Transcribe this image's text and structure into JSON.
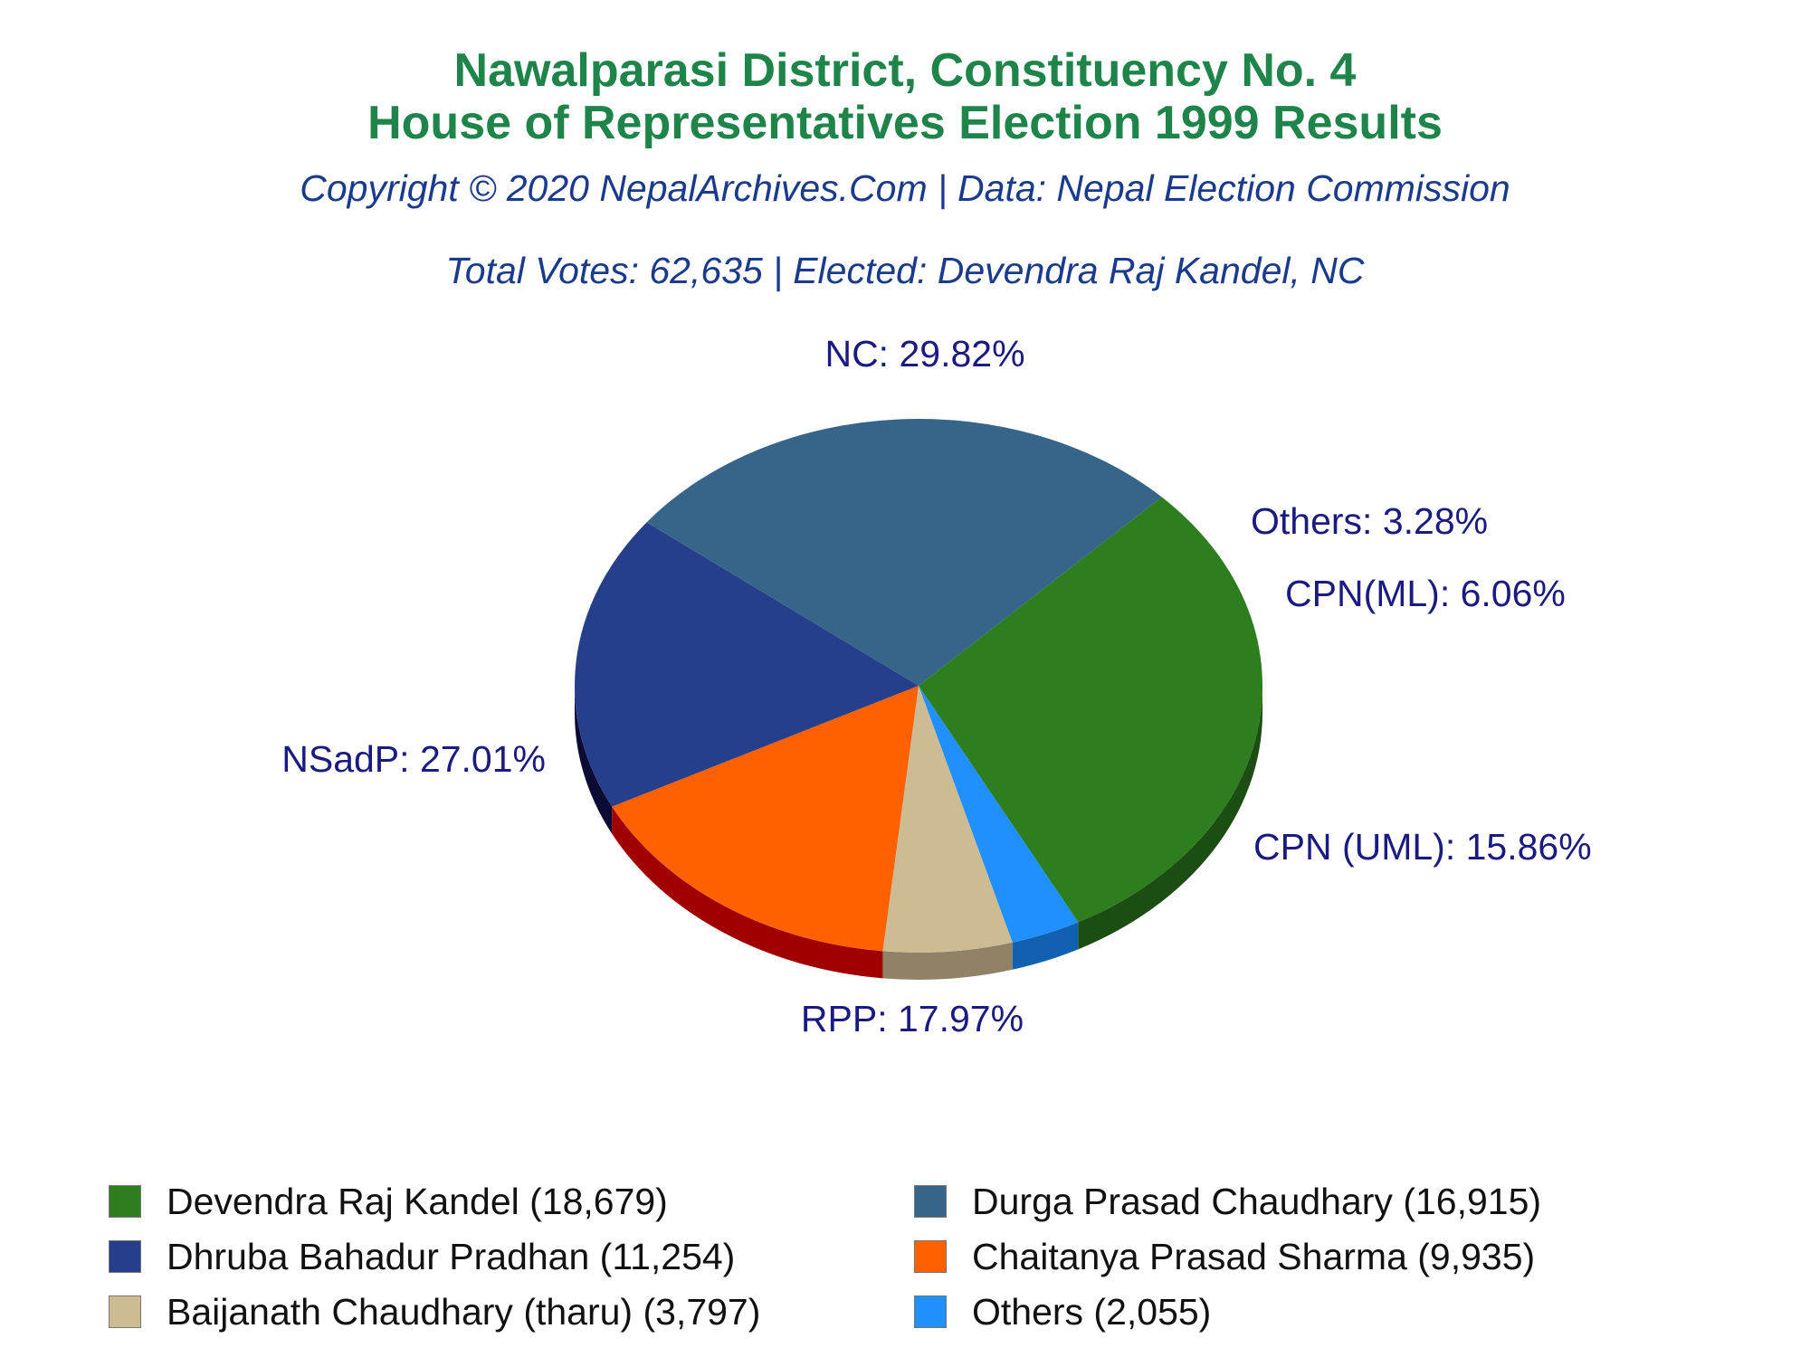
{
  "title_line1": "Nawalparasi District, Constituency No. 4",
  "title_line2": "House of Representatives Election 1999 Results",
  "subtitle_line1": "Copyright © 2020 NepalArchives.Com | Data: Nepal Election Commission",
  "subtitle_line2": "Total Votes: 62,635 | Elected: Devendra Raj Kandel, NC",
  "chart_data": {
    "type": "pie",
    "slices": [
      {
        "label": "NC: 29.82%",
        "value": 29.82,
        "color": "#2e7d1e",
        "side_color": "#1c4d12",
        "legend": "Devendra Raj Kandel (18,679)"
      },
      {
        "label": "Others: 3.28%",
        "value": 3.28,
        "color": "#2190ff",
        "side_color": "#1260b0",
        "legend": "Others (2,055)"
      },
      {
        "label": "CPN(ML): 6.06%",
        "value": 6.06,
        "color": "#cdbb94",
        "side_color": "#8f8266",
        "legend": "Baijanath Chaudhary (tharu) (3,797)"
      },
      {
        "label": "CPN (UML): 15.86%",
        "value": 15.86,
        "color": "#ff6000",
        "side_color": "#a00000",
        "legend": "Chaitanya Prasad Sharma (9,935)"
      },
      {
        "label": "RPP: 17.97%",
        "value": 17.97,
        "color": "#253f8a",
        "side_color": "#0b0b33",
        "legend": "Dhruba Bahadur Pradhan (11,254)"
      },
      {
        "label": "NSadP: 27.01%",
        "value": 27.01,
        "color": "#376489",
        "side_color": "#0b0b33",
        "legend": "Durga Prasad Chaudhary (16,915)"
      }
    ],
    "legend_order": [
      0,
      5,
      4,
      3,
      2,
      1
    ],
    "legend_columns": 2
  }
}
